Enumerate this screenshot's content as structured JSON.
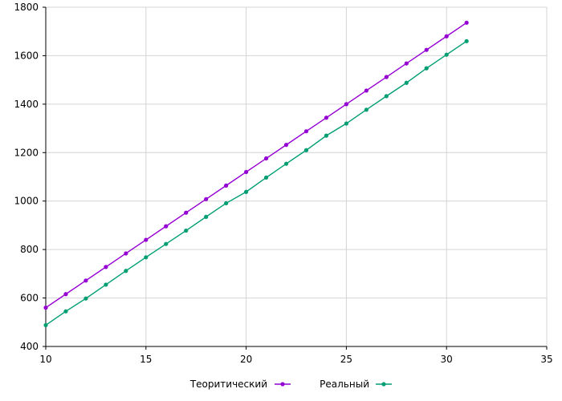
{
  "chart_data": {
    "type": "line",
    "x": [
      10,
      11,
      12,
      13,
      14,
      15,
      16,
      17,
      18,
      19,
      20,
      21,
      22,
      23,
      24,
      25,
      26,
      27,
      28,
      29,
      30,
      31
    ],
    "series": [
      {
        "name": "Теоритический",
        "color": "#9400d3",
        "values": [
          560,
          616,
          672,
          728,
          784,
          840,
          896,
          952,
          1008,
          1064,
          1120,
          1176,
          1232,
          1288,
          1344,
          1400,
          1456,
          1512,
          1568,
          1624,
          1680,
          1736
        ]
      },
      {
        "name": "Реальный",
        "color": "#009e73",
        "values": [
          488,
          545,
          598,
          655,
          712,
          768,
          823,
          878,
          935,
          991,
          1038,
          1097,
          1154,
          1210,
          1270,
          1320,
          1377,
          1433,
          1488,
          1548,
          1604,
          1660
        ]
      }
    ],
    "xlim": [
      10,
      35
    ],
    "ylim": [
      400,
      1800
    ],
    "x_ticks": [
      "10",
      "15",
      "20",
      "25",
      "30",
      "35"
    ],
    "y_ticks": [
      "400",
      "600",
      "800",
      "1000",
      "1200",
      "1400",
      "1600",
      "1800"
    ],
    "grid": true,
    "legend_position": "bottom"
  }
}
